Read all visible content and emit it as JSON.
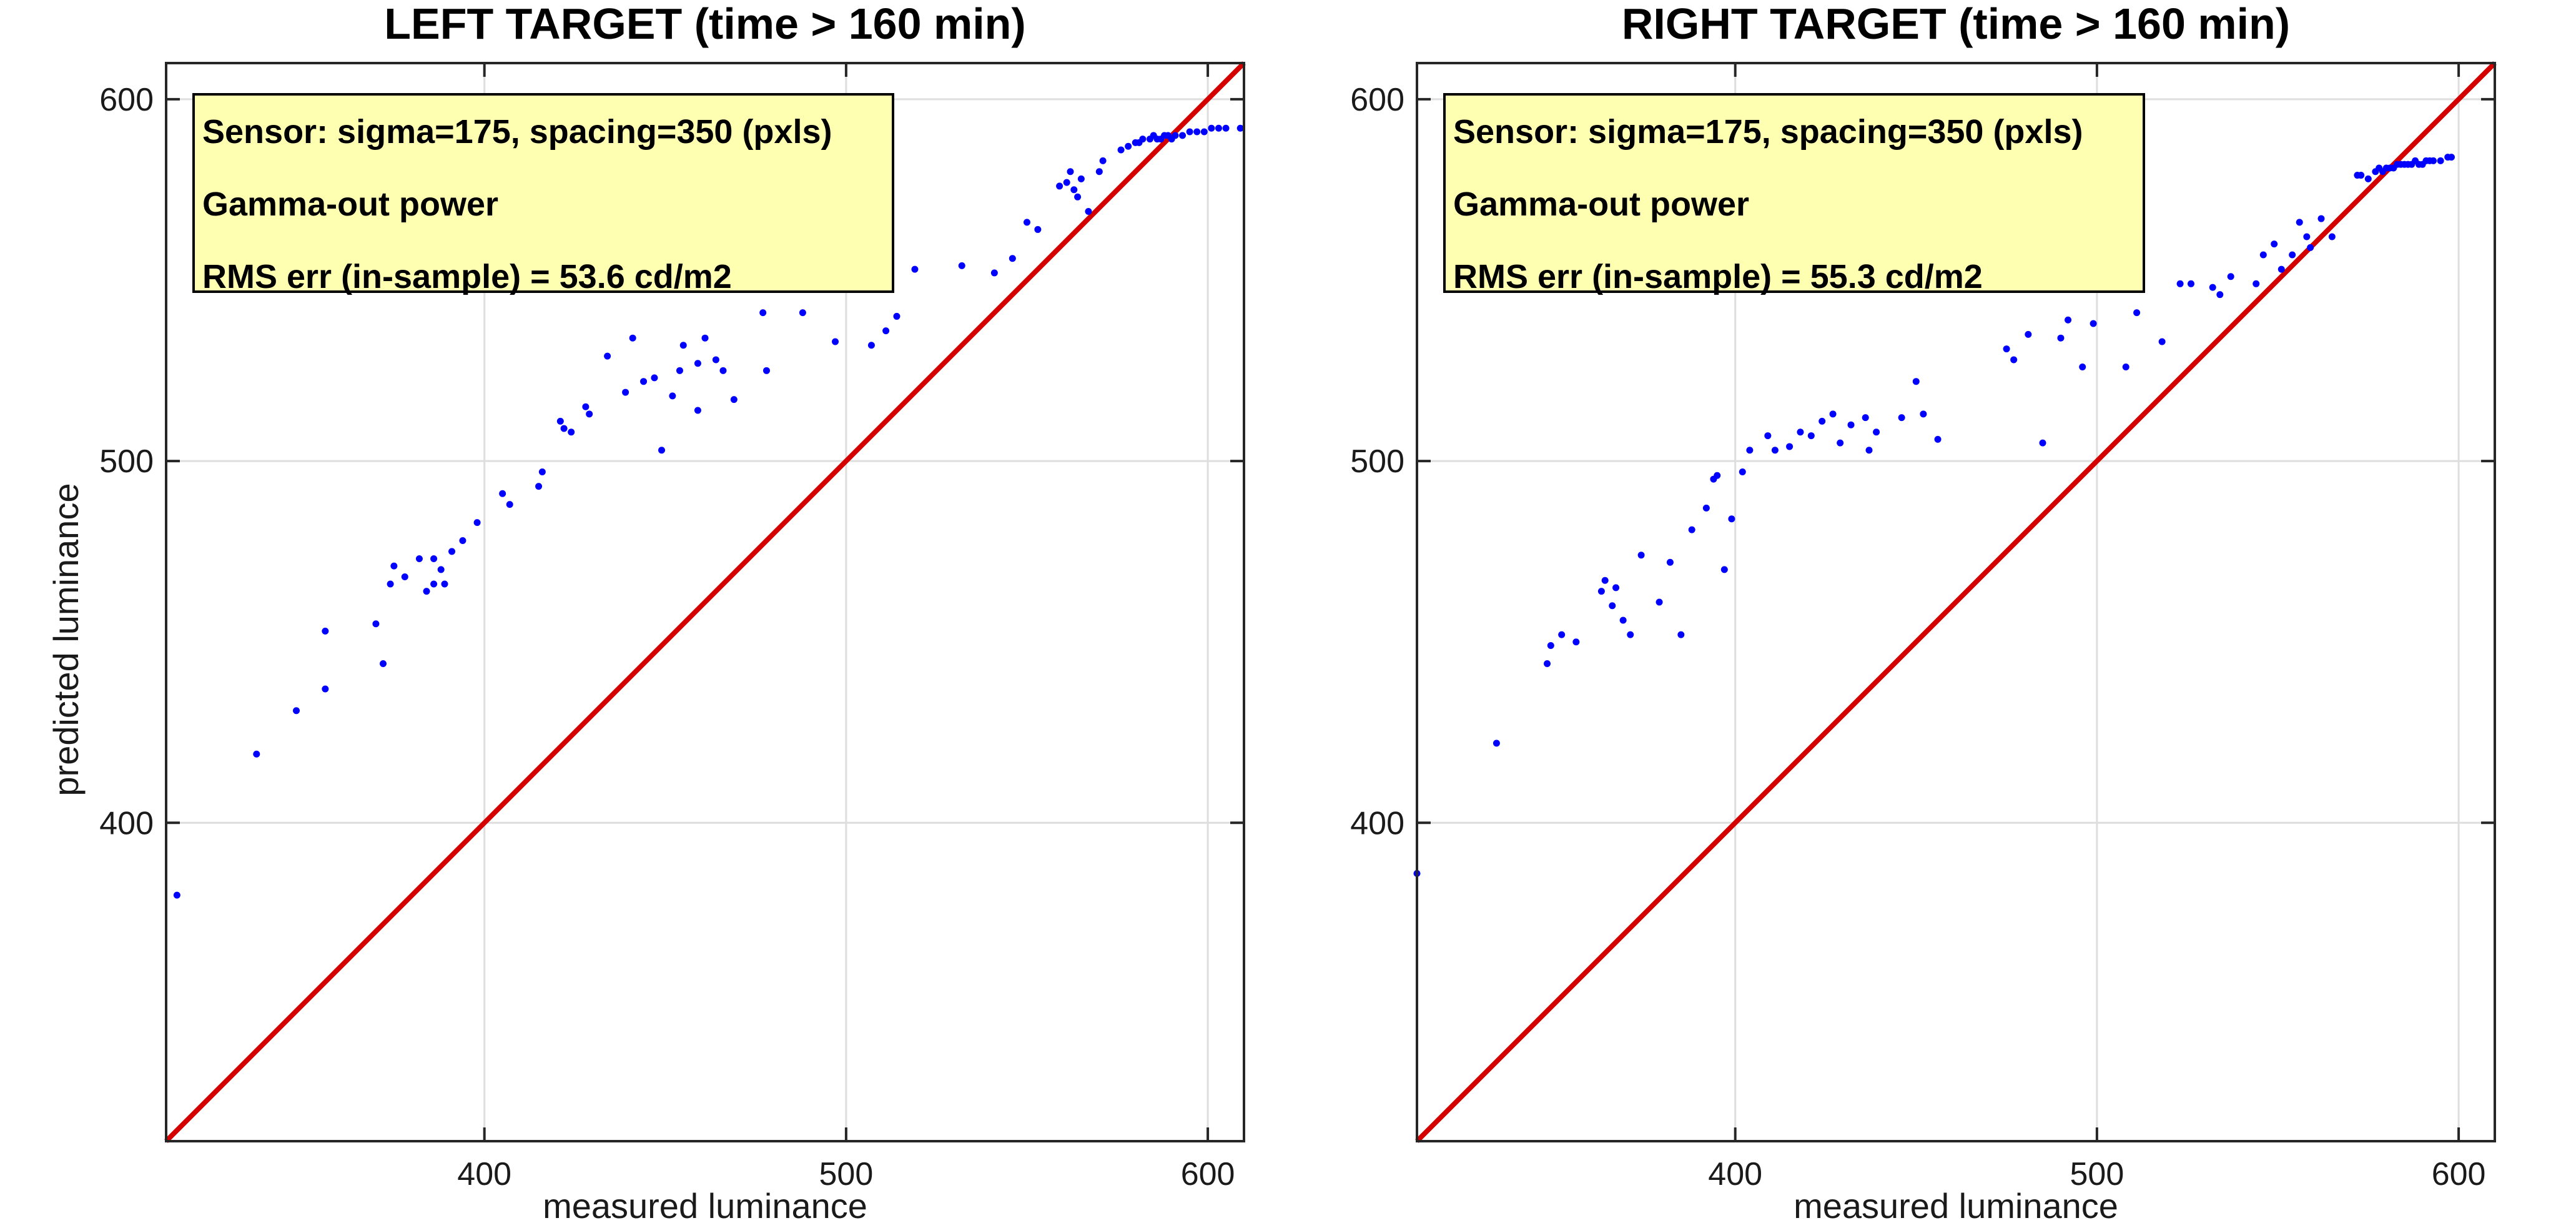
{
  "chart_data": [
    {
      "type": "scatter",
      "title": "LEFT TARGET (time > 160 min)",
      "xlabel": "measured luminance",
      "ylabel": "predicted luminance",
      "xlim": [
        312,
        610
      ],
      "ylim": [
        312,
        610
      ],
      "xticks": [
        "400",
        "500",
        "600"
      ],
      "yticks": [
        "400",
        "500",
        "600"
      ],
      "grid": true,
      "annotations": [
        "Sensor: sigma=175, spacing=350 (pxls)",
        "Gamma-out power",
        "RMS err (in-sample) = 53.6 cd/m2"
      ],
      "annotation_placement": "top-left",
      "colors": {
        "points": "#0000ff",
        "identity_line": "#d40000"
      },
      "identity_line": [
        [
          312,
          312
        ],
        [
          610,
          610
        ]
      ],
      "points": [
        [
          315,
          380
        ],
        [
          337,
          419
        ],
        [
          348,
          431
        ],
        [
          356,
          437
        ],
        [
          356,
          453
        ],
        [
          370,
          455
        ],
        [
          372,
          444
        ],
        [
          374,
          466
        ],
        [
          375,
          471
        ],
        [
          378,
          468
        ],
        [
          382,
          473
        ],
        [
          384,
          464
        ],
        [
          386,
          473
        ],
        [
          386,
          466
        ],
        [
          388,
          470
        ],
        [
          389,
          466
        ],
        [
          391,
          475
        ],
        [
          394,
          478
        ],
        [
          398,
          483
        ],
        [
          405,
          491
        ],
        [
          407,
          488
        ],
        [
          415,
          493
        ],
        [
          416,
          497
        ],
        [
          421,
          511
        ],
        [
          422,
          509
        ],
        [
          424,
          508
        ],
        [
          428,
          515
        ],
        [
          429,
          513
        ],
        [
          434,
          529
        ],
        [
          439,
          519
        ],
        [
          441,
          534
        ],
        [
          444,
          522
        ],
        [
          447,
          523
        ],
        [
          449,
          503
        ],
        [
          452,
          518
        ],
        [
          454,
          525
        ],
        [
          455,
          532
        ],
        [
          459,
          514
        ],
        [
          459,
          527
        ],
        [
          461,
          534
        ],
        [
          464,
          528
        ],
        [
          466,
          525
        ],
        [
          469,
          517
        ],
        [
          477,
          541
        ],
        [
          478,
          525
        ],
        [
          488,
          541
        ],
        [
          497,
          533
        ],
        [
          505,
          550
        ],
        [
          507,
          532
        ],
        [
          511,
          536
        ],
        [
          514,
          540
        ],
        [
          519,
          553
        ],
        [
          532,
          554
        ],
        [
          541,
          552
        ],
        [
          546,
          556
        ],
        [
          550,
          566
        ],
        [
          553,
          564
        ],
        [
          559,
          576
        ],
        [
          561,
          577
        ],
        [
          562,
          580
        ],
        [
          563,
          575
        ],
        [
          564,
          573
        ],
        [
          565,
          578
        ],
        [
          567,
          569
        ],
        [
          570,
          580
        ],
        [
          571,
          583
        ],
        [
          576,
          586
        ],
        [
          578,
          587
        ],
        [
          580,
          588
        ],
        [
          581,
          588
        ],
        [
          582,
          589
        ],
        [
          584,
          589
        ],
        [
          585,
          590
        ],
        [
          586,
          589
        ],
        [
          587,
          589
        ],
        [
          588,
          590
        ],
        [
          589,
          590
        ],
        [
          590,
          589
        ],
        [
          591,
          590
        ],
        [
          593,
          590
        ],
        [
          595,
          591
        ],
        [
          597,
          591
        ],
        [
          599,
          591
        ],
        [
          601,
          592
        ],
        [
          603,
          592
        ],
        [
          605,
          592
        ],
        [
          609,
          592
        ]
      ]
    },
    {
      "type": "scatter",
      "title": "RIGHT TARGET (time > 160 min)",
      "xlabel": "measured luminance",
      "ylabel": "",
      "xlim": [
        312,
        610
      ],
      "ylim": [
        312,
        610
      ],
      "xticks": [
        "400",
        "500",
        "600"
      ],
      "yticks": [
        "400",
        "500",
        "600"
      ],
      "grid": true,
      "annotations": [
        "Sensor: sigma=175, spacing=350 (pxls)",
        "Gamma-out power",
        "RMS err (in-sample) = 55.3 cd/m2"
      ],
      "annotation_placement": "top-left",
      "colors": {
        "points": "#0000ff",
        "identity_line": "#d40000"
      },
      "identity_line": [
        [
          312,
          312
        ],
        [
          610,
          610
        ]
      ],
      "points": [
        [
          312,
          386
        ],
        [
          334,
          422
        ],
        [
          348,
          444
        ],
        [
          349,
          449
        ],
        [
          352,
          452
        ],
        [
          356,
          450
        ],
        [
          363,
          464
        ],
        [
          364,
          467
        ],
        [
          366,
          460
        ],
        [
          367,
          465
        ],
        [
          369,
          456
        ],
        [
          371,
          452
        ],
        [
          374,
          474
        ],
        [
          379,
          461
        ],
        [
          382,
          472
        ],
        [
          385,
          452
        ],
        [
          388,
          481
        ],
        [
          392,
          487
        ],
        [
          394,
          495
        ],
        [
          395,
          496
        ],
        [
          397,
          470
        ],
        [
          399,
          484
        ],
        [
          402,
          497
        ],
        [
          404,
          503
        ],
        [
          409,
          507
        ],
        [
          411,
          503
        ],
        [
          415,
          504
        ],
        [
          418,
          508
        ],
        [
          421,
          507
        ],
        [
          424,
          511
        ],
        [
          427,
          513
        ],
        [
          429,
          505
        ],
        [
          432,
          510
        ],
        [
          436,
          512
        ],
        [
          437,
          503
        ],
        [
          439,
          508
        ],
        [
          446,
          512
        ],
        [
          450,
          522
        ],
        [
          452,
          513
        ],
        [
          456,
          506
        ],
        [
          475,
          531
        ],
        [
          477,
          528
        ],
        [
          481,
          535
        ],
        [
          485,
          505
        ],
        [
          490,
          534
        ],
        [
          492,
          539
        ],
        [
          496,
          526
        ],
        [
          499,
          538
        ],
        [
          508,
          526
        ],
        [
          511,
          541
        ],
        [
          518,
          533
        ],
        [
          523,
          549
        ],
        [
          526,
          549
        ],
        [
          532,
          548
        ],
        [
          534,
          546
        ],
        [
          537,
          551
        ],
        [
          544,
          549
        ],
        [
          546,
          557
        ],
        [
          549,
          560
        ],
        [
          551,
          553
        ],
        [
          554,
          557
        ],
        [
          556,
          566
        ],
        [
          558,
          562
        ],
        [
          559,
          559
        ],
        [
          562,
          567
        ],
        [
          565,
          562
        ],
        [
          572,
          579
        ],
        [
          573,
          579
        ],
        [
          575,
          578
        ],
        [
          577,
          580
        ],
        [
          578,
          581
        ],
        [
          579,
          580
        ],
        [
          580,
          581
        ],
        [
          581,
          581
        ],
        [
          582,
          581
        ],
        [
          583,
          582
        ],
        [
          584,
          582
        ],
        [
          585,
          582
        ],
        [
          586,
          582
        ],
        [
          587,
          582
        ],
        [
          588,
          583
        ],
        [
          589,
          582
        ],
        [
          590,
          582
        ],
        [
          591,
          583
        ],
        [
          592,
          583
        ],
        [
          593,
          583
        ],
        [
          595,
          583
        ],
        [
          597,
          584
        ],
        [
          598,
          584
        ]
      ]
    }
  ]
}
